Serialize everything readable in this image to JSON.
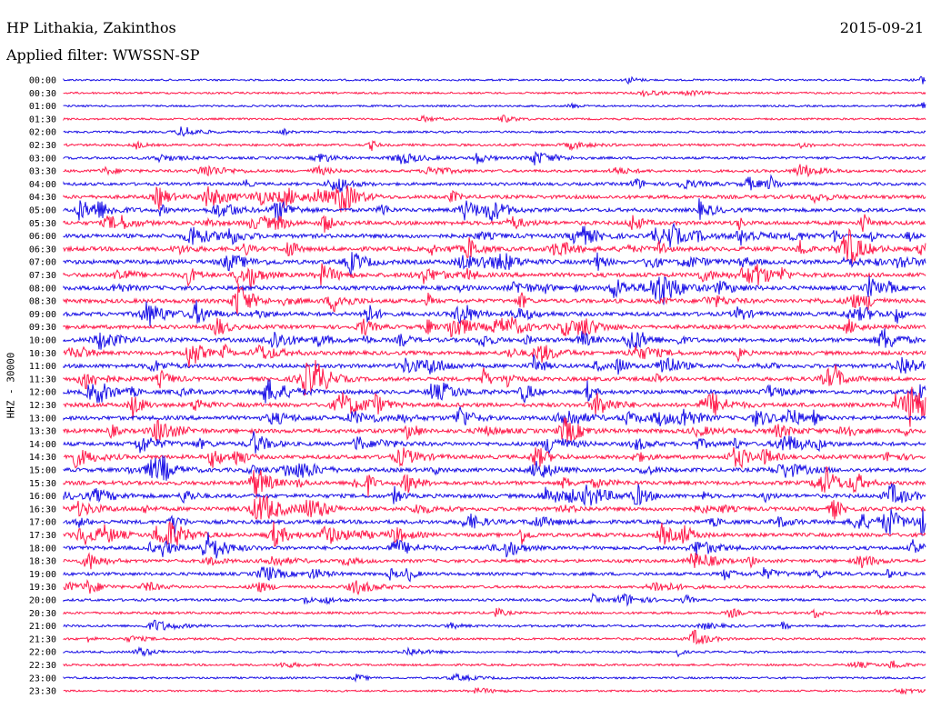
{
  "header": {
    "station": "HP Lithakia, Zakinthos",
    "date": "2015-09-21",
    "filter": "Applied filter: WWSSN-SP"
  },
  "channel_label": "HHZ - 30000",
  "colors": {
    "blue_trace": "#1a10e6",
    "red_trace": "#ff1a4a"
  },
  "chart_data": {
    "type": "line",
    "title": "HP Lithakia, Zakinthos",
    "ylabel": "HHZ - 30000",
    "categories": [
      "00:00",
      "00:30",
      "01:00",
      "01:30",
      "02:00",
      "02:30",
      "03:00",
      "03:30",
      "04:00",
      "04:30",
      "05:00",
      "05:30",
      "06:00",
      "06:30",
      "07:00",
      "07:30",
      "08:00",
      "08:30",
      "09:00",
      "09:30",
      "10:00",
      "10:30",
      "11:00",
      "11:30",
      "12:00",
      "12:30",
      "13:00",
      "13:30",
      "14:00",
      "14:30",
      "15:00",
      "15:30",
      "16:00",
      "16:30",
      "17:00",
      "17:30",
      "18:00",
      "18:30",
      "19:00",
      "19:30",
      "20:00",
      "20:30",
      "21:00",
      "21:30",
      "22:00",
      "22:30",
      "23:00",
      "23:30"
    ],
    "trace_colors": [
      "blue",
      "red"
    ],
    "activity_level": [
      0.12,
      0.14,
      0.12,
      0.14,
      0.2,
      0.3,
      0.35,
      0.4,
      0.5,
      0.7,
      0.75,
      0.8,
      0.85,
      0.9,
      0.9,
      0.9,
      0.85,
      0.85,
      0.85,
      0.8,
      0.85,
      0.8,
      0.8,
      0.8,
      0.85,
      0.85,
      0.85,
      0.85,
      0.8,
      0.8,
      0.8,
      0.8,
      0.8,
      0.8,
      0.8,
      0.75,
      0.7,
      0.6,
      0.55,
      0.4,
      0.35,
      0.3,
      0.3,
      0.25,
      0.2,
      0.2,
      0.15,
      0.12
    ],
    "grid": false
  }
}
